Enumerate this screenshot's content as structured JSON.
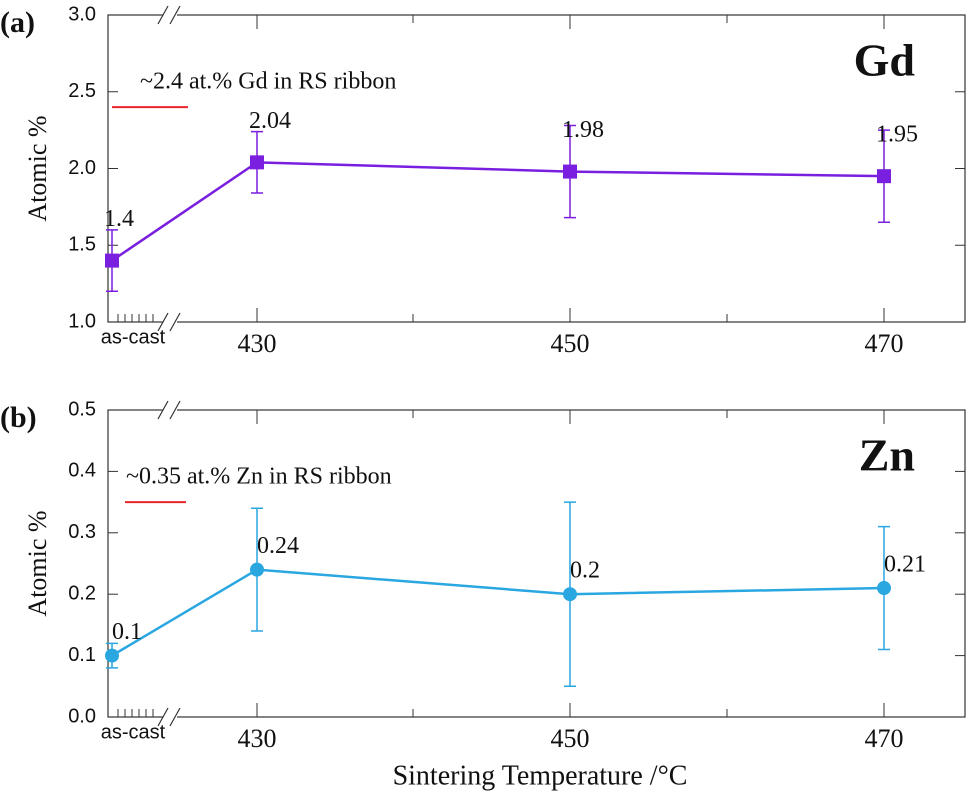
{
  "chart_data": [
    {
      "type": "line",
      "panel_label": "(a)",
      "label": "Gd",
      "y_label": "Atomic %",
      "categories": [
        "as-cast",
        "430",
        "450",
        "470"
      ],
      "values": [
        1.4,
        2.04,
        1.98,
        1.95
      ],
      "errors": [
        0.2,
        0.2,
        0.3,
        0.3
      ],
      "color": "#7a1fe0",
      "marker": "square",
      "ylim": [
        1,
        3
      ],
      "yticks": [
        {
          "value": 1,
          "label": "1.0"
        },
        1.5,
        {
          "value": 2,
          "label": "2.0"
        },
        2.5,
        {
          "value": 3,
          "label": "3.0"
        }
      ],
      "reference": {
        "label": "~2.4 at.% Gd in RS ribbon",
        "value": 2.4,
        "color": "#e8262b"
      }
    },
    {
      "type": "line",
      "panel_label": "(b)",
      "label": "Zn",
      "y_label": "Atomic %",
      "x_label": "Sintering Temperature /°C",
      "categories": [
        "as-cast",
        "430",
        "450",
        "470"
      ],
      "values": [
        0.1,
        0.24,
        0.2,
        0.21
      ],
      "errors": [
        0.02,
        0.1,
        0.15,
        0.1
      ],
      "color": "#2aa6e0",
      "marker": "circle",
      "ylim": [
        0,
        0.5
      ],
      "yticks": [
        {
          "value": 0,
          "label": "0.0"
        },
        0.1,
        0.2,
        0.3,
        0.4,
        0.5
      ],
      "reference": {
        "label": "~0.35 at.% Zn in RS ribbon",
        "value": 0.35,
        "color": "#e8262b"
      }
    }
  ]
}
